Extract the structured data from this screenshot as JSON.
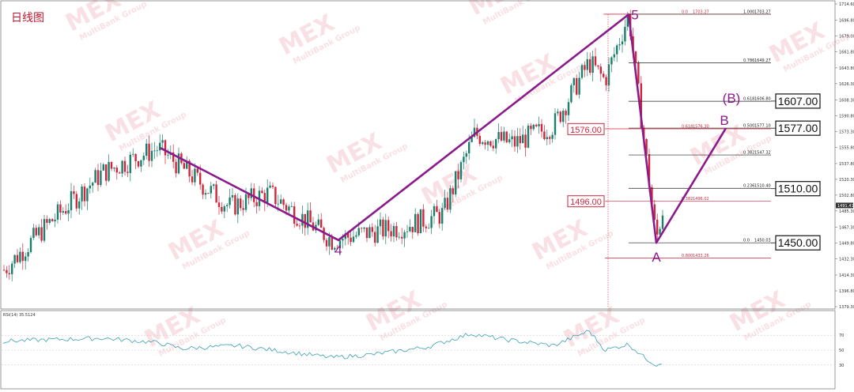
{
  "title": "日线图",
  "colors": {
    "wave": "#8b1a8b",
    "bull": "#1a7f6b",
    "bear": "#d0253c",
    "fib_black": "#222222",
    "fib_red": "#d0253c",
    "rsi_line": "#3aa0b0",
    "grid": "#c8c8c8",
    "watermark": "#f3c7ce"
  },
  "watermark": {
    "logo": "MEX",
    "brand": "MultiBank Group"
  },
  "price_axis": {
    "ticks": [
      "1714.60",
      "1696.80",
      "1679.00",
      "1661.80",
      "1643.80",
      "1626.30",
      "1608.30",
      "1590.80",
      "1573.30",
      "1555.80",
      "1537.80",
      "1520.30",
      "1502.80",
      "1485.30",
      "1467.30",
      "1449.80",
      "1432.30",
      "1414.30",
      "1396.80",
      "1379.30"
    ],
    "current": "1491.41"
  },
  "rsi": {
    "label": "RSI(14) 35.5124",
    "levels": [
      "70",
      "50",
      "30"
    ]
  },
  "fib_levels": [
    {
      "ratio": "0.0",
      "value": "1703.27",
      "color": "red"
    },
    {
      "ratio": "1.000",
      "value": "1703.27",
      "color": "black"
    },
    {
      "ratio": "0.786",
      "value": "1649.27",
      "color": "black"
    },
    {
      "ratio": "0.618",
      "value": "1606.80",
      "color": "black"
    },
    {
      "ratio": "0.500",
      "value": "1577.10",
      "color": "black"
    },
    {
      "ratio": "0.618",
      "value": "1576.30",
      "color": "red"
    },
    {
      "ratio": "0.382",
      "value": "1547.32",
      "color": "black"
    },
    {
      "ratio": "0.236",
      "value": "1510.40",
      "color": "black"
    },
    {
      "ratio": "0.382",
      "value": "1496.02",
      "color": "red"
    },
    {
      "ratio": "0.0",
      "value": "1450.03",
      "color": "black"
    },
    {
      "ratio": "0.800",
      "value": "1433.26",
      "color": "red"
    }
  ],
  "price_boxes_right": [
    "1607.00",
    "1577.00",
    "1510.00",
    "1450.00"
  ],
  "price_boxes_left": [
    "1576.00",
    "1496.00"
  ],
  "wave_labels": {
    "w4": "4",
    "w5": "5",
    "a": "A",
    "b": "B",
    "b_proj": "(B)"
  },
  "chart_data": {
    "type": "line",
    "title": "日线图",
    "y_range": [
      1379.3,
      1714.6
    ],
    "series": [
      {
        "values": [
          1555,
          1453,
          1703,
          1450,
          1577
        ]
      }
    ],
    "rsi_range": [
      0,
      100
    ],
    "rsi_levels": [
      70,
      50,
      30
    ],
    "rsi_current": 35.5124,
    "key_levels": [
      1607.0,
      1577.0,
      1576.0,
      1510.0,
      1496.0,
      1450.0
    ],
    "grid": false
  }
}
